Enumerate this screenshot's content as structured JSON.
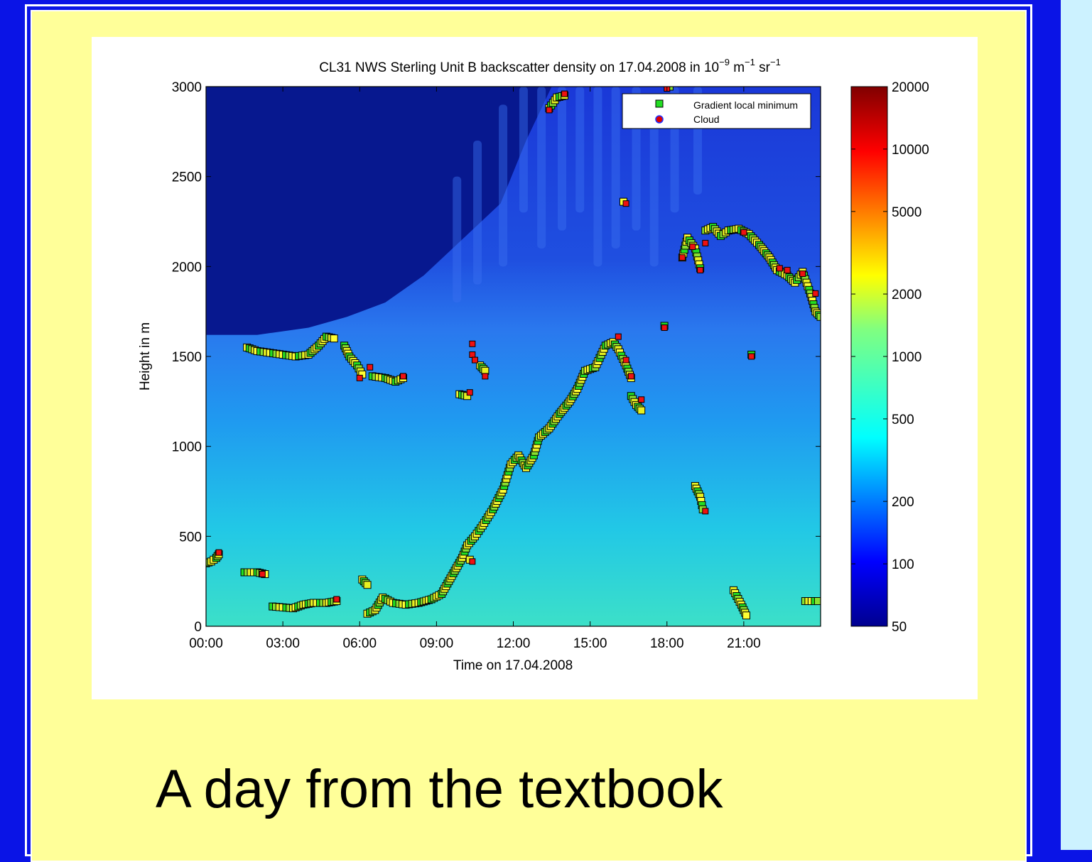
{
  "caption": "A day from the textbook",
  "colors": {
    "background": "#0a14e6",
    "slide": "#ffff99",
    "side_panel": "#ccf2ff",
    "border": "#ffffff"
  },
  "chart_data": {
    "type": "heatmap",
    "title": {
      "prefix": "CL31 NWS Sterling Unit B backscatter density on 17.04.2008 in 10",
      "exp1": "−9",
      "unit1": " m",
      "exp2": "−1",
      "unit2": " sr",
      "exp3": "−1"
    },
    "xlabel": "Time on 17.04.2008",
    "ylabel": "Height in m",
    "x_range_hours": [
      0,
      24
    ],
    "ylim": [
      0,
      3000
    ],
    "xticks": [
      {
        "hour": 0,
        "label": "00:00"
      },
      {
        "hour": 3,
        "label": "03:00"
      },
      {
        "hour": 6,
        "label": "06:00"
      },
      {
        "hour": 9,
        "label": "09:00"
      },
      {
        "hour": 12,
        "label": "12:00"
      },
      {
        "hour": 15,
        "label": "15:00"
      },
      {
        "hour": 18,
        "label": "18:00"
      },
      {
        "hour": 21,
        "label": "21:00"
      }
    ],
    "yticks": [
      {
        "value": 0,
        "label": "0"
      },
      {
        "value": 500,
        "label": "500"
      },
      {
        "value": 1000,
        "label": "1000"
      },
      {
        "value": 1500,
        "label": "1500"
      },
      {
        "value": 2000,
        "label": "2000"
      },
      {
        "value": 2500,
        "label": "2500"
      },
      {
        "value": 3000,
        "label": "3000"
      }
    ],
    "colorbar": {
      "scale": "log",
      "range": [
        50,
        20000
      ],
      "ticks": [
        {
          "value": 50,
          "label": "50"
        },
        {
          "value": 100,
          "label": "100"
        },
        {
          "value": 200,
          "label": "200"
        },
        {
          "value": 500,
          "label": "500"
        },
        {
          "value": 1000,
          "label": "1000"
        },
        {
          "value": 2000,
          "label": "2000"
        },
        {
          "value": 5000,
          "label": "5000"
        },
        {
          "value": 10000,
          "label": "10000"
        },
        {
          "value": 20000,
          "label": "20000"
        }
      ]
    },
    "boundary_layer_top": [
      {
        "t": 0,
        "h": 1620
      },
      {
        "t": 2,
        "h": 1620
      },
      {
        "t": 4,
        "h": 1660
      },
      {
        "t": 5.5,
        "h": 1720
      },
      {
        "t": 7,
        "h": 1800
      },
      {
        "t": 8.5,
        "h": 1950
      },
      {
        "t": 10,
        "h": 2150
      },
      {
        "t": 11.5,
        "h": 2350
      },
      {
        "t": 12.5,
        "h": 2700
      },
      {
        "t": 13.5,
        "h": 3000
      },
      {
        "t": 24,
        "h": 3000
      }
    ],
    "legend": {
      "position": "top-right",
      "entries": [
        {
          "label": "Gradient local minimum",
          "marker": "square",
          "color": "#22dd22"
        },
        {
          "label": "Cloud",
          "marker": "circle",
          "color": "#dd0000"
        }
      ]
    },
    "series": [
      {
        "name": "Gradient local minimum",
        "segments": [
          [
            [
              0.0,
              350
            ],
            [
              0.2,
              360
            ],
            [
              0.4,
              380
            ],
            [
              0.5,
              400
            ]
          ],
          [
            [
              1.6,
              1550
            ],
            [
              2.0,
              1530
            ],
            [
              2.5,
              1520
            ],
            [
              3.0,
              1510
            ],
            [
              3.5,
              1500
            ],
            [
              4.0,
              1510
            ],
            [
              4.4,
              1560
            ],
            [
              4.7,
              1610
            ],
            [
              5.0,
              1600
            ]
          ],
          [
            [
              5.4,
              1560
            ],
            [
              5.6,
              1500
            ],
            [
              5.9,
              1450
            ],
            [
              6.1,
              1400
            ]
          ],
          [
            [
              6.5,
              1390
            ],
            [
              7.0,
              1380
            ],
            [
              7.4,
              1360
            ],
            [
              7.7,
              1380
            ]
          ],
          [
            [
              1.5,
              300
            ],
            [
              2.0,
              300
            ],
            [
              2.3,
              290
            ]
          ],
          [
            [
              2.6,
              110
            ],
            [
              3.0,
              105
            ],
            [
              3.4,
              100
            ],
            [
              3.8,
              120
            ],
            [
              4.2,
              130
            ],
            [
              4.7,
              130
            ],
            [
              5.1,
              140
            ]
          ],
          [
            [
              6.1,
              260
            ],
            [
              6.3,
              230
            ]
          ],
          [
            [
              6.3,
              70
            ],
            [
              6.6,
              90
            ],
            [
              6.9,
              160
            ],
            [
              7.3,
              130
            ],
            [
              7.8,
              120
            ],
            [
              8.3,
              130
            ],
            [
              8.8,
              150
            ],
            [
              9.2,
              180
            ],
            [
              9.6,
              280
            ],
            [
              10.0,
              380
            ],
            [
              10.2,
              450
            ],
            [
              10.5,
              500
            ],
            [
              10.8,
              560
            ],
            [
              11.2,
              650
            ],
            [
              11.6,
              760
            ],
            [
              11.9,
              900
            ],
            [
              12.2,
              950
            ],
            [
              12.5,
              880
            ],
            [
              12.8,
              950
            ],
            [
              13.0,
              1050
            ],
            [
              13.4,
              1100
            ],
            [
              13.8,
              1180
            ],
            [
              14.2,
              1250
            ],
            [
              14.5,
              1320
            ],
            [
              14.8,
              1420
            ],
            [
              15.2,
              1440
            ],
            [
              15.6,
              1560
            ],
            [
              15.9,
              1580
            ],
            [
              16.1,
              1540
            ],
            [
              16.4,
              1450
            ],
            [
              16.6,
              1380
            ]
          ],
          [
            [
              16.6,
              1280
            ],
            [
              16.8,
              1230
            ],
            [
              17.0,
              1200
            ]
          ],
          [
            [
              9.9,
              1290
            ],
            [
              10.2,
              1280
            ]
          ],
          [
            [
              10.7,
              1450
            ],
            [
              10.9,
              1420
            ]
          ],
          [
            [
              13.4,
              2880
            ],
            [
              13.7,
              2940
            ],
            [
              14.0,
              2950
            ]
          ],
          [
            [
              16.3,
              2360
            ]
          ],
          [
            [
              17.9,
              1670
            ]
          ],
          [
            [
              18.1,
              3000
            ]
          ],
          [
            [
              18.6,
              2050
            ],
            [
              18.8,
              2160
            ],
            [
              19.1,
              2100
            ],
            [
              19.3,
              1990
            ]
          ],
          [
            [
              19.5,
              2200
            ],
            [
              19.8,
              2220
            ],
            [
              20.1,
              2170
            ],
            [
              20.4,
              2200
            ],
            [
              20.8,
              2210
            ],
            [
              21.2,
              2180
            ],
            [
              21.6,
              2120
            ],
            [
              22.0,
              2050
            ],
            [
              22.3,
              1980
            ],
            [
              22.7,
              1950
            ],
            [
              23.0,
              1910
            ],
            [
              23.3,
              1970
            ],
            [
              23.6,
              1850
            ],
            [
              23.8,
              1750
            ],
            [
              24.0,
              1720
            ]
          ],
          [
            [
              19.1,
              780
            ],
            [
              19.3,
              720
            ],
            [
              19.4,
              650
            ]
          ],
          [
            [
              20.6,
              200
            ],
            [
              20.9,
              120
            ],
            [
              21.1,
              60
            ]
          ],
          [
            [
              21.3,
              1510
            ]
          ],
          [
            [
              23.4,
              140
            ],
            [
              23.9,
              140
            ]
          ],
          [
            [
              10.3,
              370
            ]
          ]
        ]
      },
      {
        "name": "Cloud",
        "points": [
          [
            0.5,
            410
          ],
          [
            2.2,
            290
          ],
          [
            5.1,
            150
          ],
          [
            6.0,
            1380
          ],
          [
            6.4,
            1440
          ],
          [
            7.7,
            1390
          ],
          [
            10.4,
            1570
          ],
          [
            10.4,
            1510
          ],
          [
            10.5,
            1480
          ],
          [
            10.9,
            1390
          ],
          [
            13.4,
            2870
          ],
          [
            14.0,
            2960
          ],
          [
            16.1,
            1610
          ],
          [
            16.4,
            1480
          ],
          [
            16.6,
            1390
          ],
          [
            17.0,
            1260
          ],
          [
            17.9,
            1660
          ],
          [
            18.0,
            2990
          ],
          [
            18.6,
            2050
          ],
          [
            19.0,
            2110
          ],
          [
            19.3,
            1980
          ],
          [
            19.5,
            2130
          ],
          [
            19.5,
            640
          ],
          [
            21.0,
            2190
          ],
          [
            21.3,
            1500
          ],
          [
            22.4,
            1990
          ],
          [
            22.7,
            1980
          ],
          [
            23.3,
            1960
          ],
          [
            23.8,
            1850
          ],
          [
            10.3,
            1300
          ],
          [
            10.4,
            360
          ],
          [
            16.4,
            2350
          ]
        ]
      }
    ]
  }
}
